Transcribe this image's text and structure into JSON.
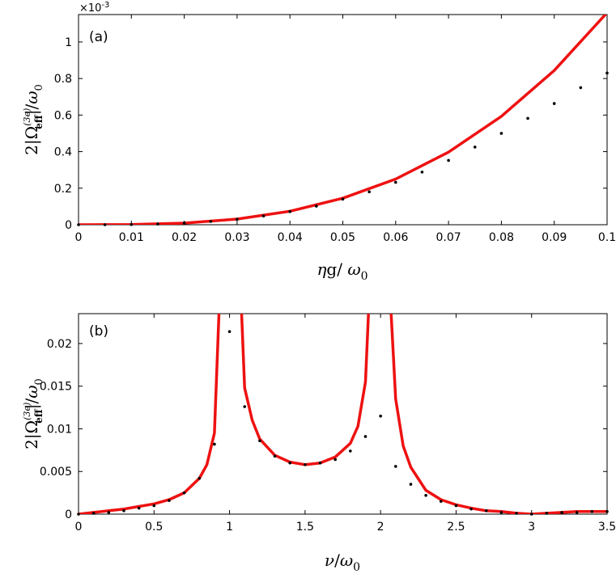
{
  "chart_data": [
    {
      "type": "line",
      "panel_label": "(a)",
      "xlabel": "ηg/ ω0",
      "ylabel": "2|Ω_eff^(3e)|/ω0",
      "y_exponent": "×10^-3",
      "xlim": [
        0,
        0.1
      ],
      "ylim": [
        0,
        1.15
      ],
      "xticks": [
        0,
        0.01,
        0.02,
        0.03,
        0.04,
        0.05,
        0.06,
        0.07,
        0.08,
        0.09,
        0.1
      ],
      "xtick_labels": [
        "0",
        "0.01",
        "0.02",
        "0.03",
        "0.04",
        "0.05",
        "0.06",
        "0.07",
        "0.08",
        "0.09",
        "0.1"
      ],
      "yticks": [
        0,
        0.2,
        0.4,
        0.6,
        0.8,
        1
      ],
      "ytick_labels": [
        "0",
        "0.2",
        "0.4",
        "0.6",
        "0.8",
        "1"
      ],
      "series": [
        {
          "style": "line",
          "color": "#ee1111",
          "x": [
            0,
            0.01,
            0.02,
            0.03,
            0.04,
            0.05,
            0.06,
            0.07,
            0.08,
            0.09,
            0.1
          ],
          "y": [
            0,
            0.001,
            0.009,
            0.031,
            0.074,
            0.145,
            0.25,
            0.397,
            0.593,
            0.844,
            1.16
          ]
        },
        {
          "style": "dots",
          "color": "#000000",
          "x": [
            0,
            0.005,
            0.01,
            0.015,
            0.02,
            0.025,
            0.03,
            0.035,
            0.04,
            0.045,
            0.05,
            0.055,
            0.06,
            0.065,
            0.07,
            0.075,
            0.08,
            0.085,
            0.09,
            0.095,
            0.1
          ],
          "y": [
            0,
            0.0,
            0.001,
            0.004,
            0.009,
            0.018,
            0.03,
            0.048,
            0.072,
            0.102,
            0.14,
            0.18,
            0.232,
            0.288,
            0.352,
            0.425,
            0.5,
            0.582,
            0.663,
            0.75,
            0.83
          ]
        }
      ]
    },
    {
      "type": "line",
      "panel_label": "(b)",
      "xlabel": "ν/ω0",
      "ylabel": "2|Ω_eff^(3e)|/ω0",
      "xlim": [
        0,
        3.5
      ],
      "ylim": [
        0,
        0.0235
      ],
      "xticks": [
        0,
        0.5,
        1,
        1.5,
        2,
        2.5,
        3,
        3.5
      ],
      "xtick_labels": [
        "0",
        "0.5",
        "1",
        "1.5",
        "2",
        "2.5",
        "3",
        "3.5"
      ],
      "yticks": [
        0,
        0.005,
        0.01,
        0.015,
        0.02
      ],
      "ytick_labels": [
        "0",
        "0.005",
        "0.01",
        "0.015",
        "0.02"
      ],
      "series": [
        {
          "style": "line",
          "color": "#ee1111",
          "segments": [
            {
              "x": [
                0,
                0.1,
                0.2,
                0.3,
                0.4,
                0.5,
                0.6,
                0.7,
                0.8,
                0.85,
                0.9,
                0.93
              ],
              "y": [
                0,
                0.0002,
                0.0004,
                0.0006,
                0.0009,
                0.0012,
                0.0017,
                0.0025,
                0.0042,
                0.0058,
                0.0095,
                0.0235
              ]
            },
            {
              "x": [
                1.08,
                1.1,
                1.15,
                1.2,
                1.3,
                1.4,
                1.5,
                1.6,
                1.7,
                1.8,
                1.85,
                1.9,
                1.92
              ],
              "y": [
                0.0235,
                0.0148,
                0.011,
                0.0088,
                0.0069,
                0.0061,
                0.0058,
                0.006,
                0.0067,
                0.0083,
                0.0103,
                0.0155,
                0.0235
              ]
            },
            {
              "x": [
                2.07,
                2.1,
                2.15,
                2.2,
                2.3,
                2.4,
                2.5,
                2.6,
                2.7,
                2.8,
                2.9,
                3.0,
                3.1,
                3.2,
                3.3,
                3.4,
                3.5
              ],
              "y": [
                0.0235,
                0.0135,
                0.008,
                0.0055,
                0.0028,
                0.0017,
                0.0011,
                0.0007,
                0.0004,
                0.0003,
                0.0001,
                0.0,
                0.0001,
                0.0002,
                0.0003,
                0.0003,
                0.0003
              ]
            }
          ]
        },
        {
          "style": "dots",
          "color": "#000000",
          "x": [
            0,
            0.1,
            0.2,
            0.3,
            0.4,
            0.5,
            0.6,
            0.7,
            0.8,
            0.9,
            1.0,
            1.1,
            1.2,
            1.3,
            1.4,
            1.5,
            1.6,
            1.7,
            1.8,
            1.9,
            2.0,
            2.1,
            2.2,
            2.3,
            2.4,
            2.5,
            2.6,
            2.7,
            2.8,
            2.9,
            3.0,
            3.1,
            3.2,
            3.3,
            3.4,
            3.5
          ],
          "y": [
            0.0,
            0.0001,
            0.0002,
            0.0004,
            0.0007,
            0.001,
            0.0016,
            0.0025,
            0.0042,
            0.0082,
            0.0214,
            0.0126,
            0.0086,
            0.0068,
            0.006,
            0.0058,
            0.006,
            0.0064,
            0.0074,
            0.0091,
            0.0115,
            0.0056,
            0.0035,
            0.0022,
            0.0015,
            0.001,
            0.0006,
            0.0004,
            0.0002,
            0.0001,
            0.0,
            0.0001,
            0.0002,
            0.0002,
            0.0003,
            0.0003
          ]
        }
      ]
    }
  ]
}
